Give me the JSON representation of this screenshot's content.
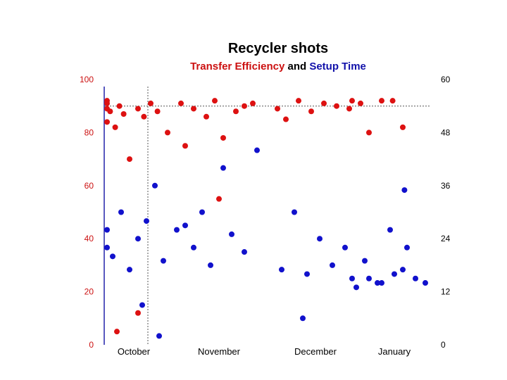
{
  "chart_data": {
    "type": "scatter",
    "title": "Recycler shots",
    "subtitle_parts": {
      "red": "Transfer Efficiency",
      "joiner": "and",
      "blue": "Setup Time"
    },
    "xlabel": "",
    "x_categories": [
      "October",
      "November",
      "December",
      "January"
    ],
    "y_left": {
      "label": "",
      "range": [
        0,
        100
      ],
      "ticks": [
        0,
        20,
        40,
        60,
        80,
        100
      ],
      "color": "#cc1111"
    },
    "y_right": {
      "label": "",
      "range": [
        0,
        60
      ],
      "ticks": [
        0,
        12,
        24,
        36,
        48,
        60
      ],
      "color": "#1111aa"
    },
    "reference_lines": {
      "horizontal_left_axis_value": 90,
      "vertical_between_months": "October"
    },
    "grid": false,
    "legend": "none",
    "colors": {
      "transfer_efficiency": "#dd1111",
      "setup_time": "#1111cc",
      "axis": "#2222aa",
      "reference": "#555555"
    },
    "series": [
      {
        "name": "Transfer Efficiency",
        "axis": "left",
        "months": [
          "October",
          "November",
          "December"
        ],
        "points_approx": [
          {
            "x": 0.05,
            "y": 84
          },
          {
            "x": 0.08,
            "y": 89
          },
          {
            "x": 0.12,
            "y": 92
          },
          {
            "x": 0.18,
            "y": 91
          },
          {
            "x": 0.22,
            "y": 88
          },
          {
            "x": 0.28,
            "y": 82
          },
          {
            "x": 0.33,
            "y": 90
          },
          {
            "x": 0.38,
            "y": 87
          },
          {
            "x": 0.45,
            "y": 70
          },
          {
            "x": 0.55,
            "y": 89
          },
          {
            "x": 0.62,
            "y": 86
          },
          {
            "x": 0.7,
            "y": 91
          },
          {
            "x": 0.78,
            "y": 88
          },
          {
            "x": 0.9,
            "y": 80
          },
          {
            "x": 1.05,
            "y": 91
          },
          {
            "x": 1.1,
            "y": 75
          },
          {
            "x": 1.2,
            "y": 89
          },
          {
            "x": 1.35,
            "y": 86
          },
          {
            "x": 1.45,
            "y": 92
          },
          {
            "x": 1.55,
            "y": 78
          },
          {
            "x": 1.7,
            "y": 88
          },
          {
            "x": 1.8,
            "y": 90
          },
          {
            "x": 1.9,
            "y": 91
          },
          {
            "x": 2.05,
            "y": 89
          },
          {
            "x": 2.15,
            "y": 85
          },
          {
            "x": 2.3,
            "y": 92
          },
          {
            "x": 2.45,
            "y": 88
          },
          {
            "x": 2.6,
            "y": 91
          },
          {
            "x": 2.75,
            "y": 90
          },
          {
            "x": 2.9,
            "y": 89
          },
          {
            "x": 3.0,
            "y": 92
          },
          {
            "x": 3.1,
            "y": 91
          },
          {
            "x": 3.2,
            "y": 80
          },
          {
            "x": 3.35,
            "y": 92
          },
          {
            "x": 3.48,
            "y": 92
          },
          {
            "x": 3.6,
            "y": 82
          },
          {
            "x": 0.3,
            "y": 5
          },
          {
            "x": 0.55,
            "y": 12
          },
          {
            "x": 1.5,
            "y": 55
          }
        ]
      },
      {
        "name": "Setup Time",
        "axis": "right",
        "months": [
          "October",
          "November",
          "December",
          "January"
        ],
        "points_approx": [
          {
            "x": 0.05,
            "y": 22
          },
          {
            "x": 0.15,
            "y": 26
          },
          {
            "x": 0.25,
            "y": 20
          },
          {
            "x": 0.35,
            "y": 30
          },
          {
            "x": 0.45,
            "y": 17
          },
          {
            "x": 0.55,
            "y": 24
          },
          {
            "x": 0.65,
            "y": 28
          },
          {
            "x": 0.75,
            "y": 36
          },
          {
            "x": 0.85,
            "y": 19
          },
          {
            "x": 1.0,
            "y": 26
          },
          {
            "x": 1.1,
            "y": 27
          },
          {
            "x": 1.2,
            "y": 22
          },
          {
            "x": 1.3,
            "y": 30
          },
          {
            "x": 1.4,
            "y": 18
          },
          {
            "x": 1.55,
            "y": 40
          },
          {
            "x": 1.65,
            "y": 25
          },
          {
            "x": 1.8,
            "y": 21
          },
          {
            "x": 1.95,
            "y": 44
          },
          {
            "x": 2.1,
            "y": 17
          },
          {
            "x": 2.25,
            "y": 30
          },
          {
            "x": 2.4,
            "y": 16
          },
          {
            "x": 2.55,
            "y": 24
          },
          {
            "x": 2.7,
            "y": 18
          },
          {
            "x": 2.85,
            "y": 22
          },
          {
            "x": 3.0,
            "y": 15
          },
          {
            "x": 3.15,
            "y": 19
          },
          {
            "x": 3.3,
            "y": 14
          },
          {
            "x": 3.45,
            "y": 26
          },
          {
            "x": 3.6,
            "y": 17
          },
          {
            "x": 3.75,
            "y": 15
          },
          {
            "x": 3.9,
            "y": 14
          },
          {
            "x": 4.05,
            "y": 13
          },
          {
            "x": 4.2,
            "y": 15
          },
          {
            "x": 4.35,
            "y": 14
          },
          {
            "x": 4.5,
            "y": 16
          },
          {
            "x": 4.62,
            "y": 35
          },
          {
            "x": 4.65,
            "y": 22
          },
          {
            "x": 0.6,
            "y": 9
          },
          {
            "x": 0.8,
            "y": 2
          },
          {
            "x": 2.35,
            "y": 6
          }
        ]
      }
    ]
  }
}
